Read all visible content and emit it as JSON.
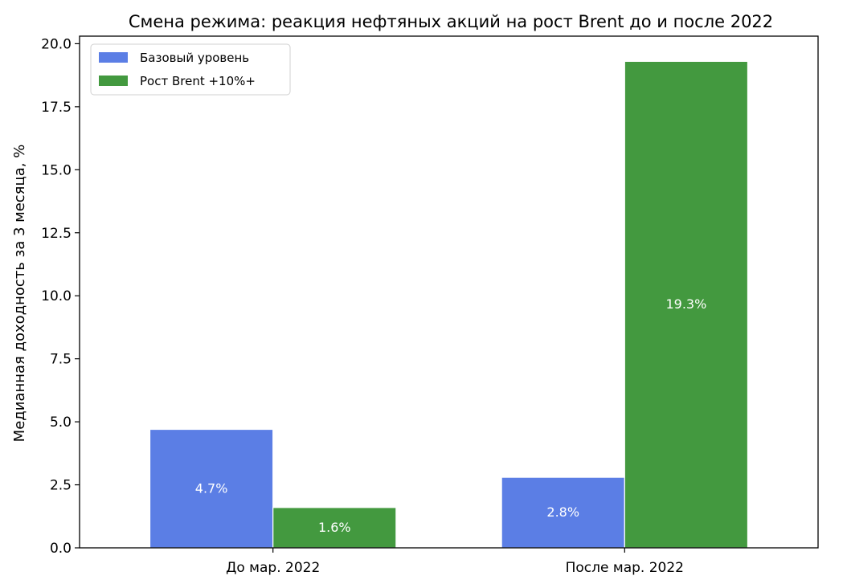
{
  "chart_data": {
    "type": "bar",
    "title": "Смена режима: реакция нефтяных акций на рост Brent до и после 2022",
    "xlabel": "",
    "ylabel": "Медианная доходность за 3 месяца, %",
    "categories": [
      "До мар. 2022",
      "После мар. 2022"
    ],
    "series": [
      {
        "name": "Базовый уровень",
        "values": [
          4.7,
          2.8
        ],
        "labels": [
          "4.7%",
          "2.8%"
        ],
        "color": "#5b7ee5"
      },
      {
        "name": "Рост Brent +10%+",
        "values": [
          1.6,
          19.3
        ],
        "labels": [
          "1.6%",
          "19.3%"
        ],
        "color": "#43993f"
      }
    ],
    "ylim": [
      0,
      20.3
    ],
    "yticks": [
      0.0,
      2.5,
      5.0,
      7.5,
      10.0,
      12.5,
      15.0,
      17.5,
      20.0
    ],
    "ytick_labels": [
      "0.0",
      "2.5",
      "5.0",
      "7.5",
      "10.0",
      "12.5",
      "15.0",
      "17.5",
      "20.0"
    ],
    "grid": false,
    "legend_position": "top-left"
  }
}
